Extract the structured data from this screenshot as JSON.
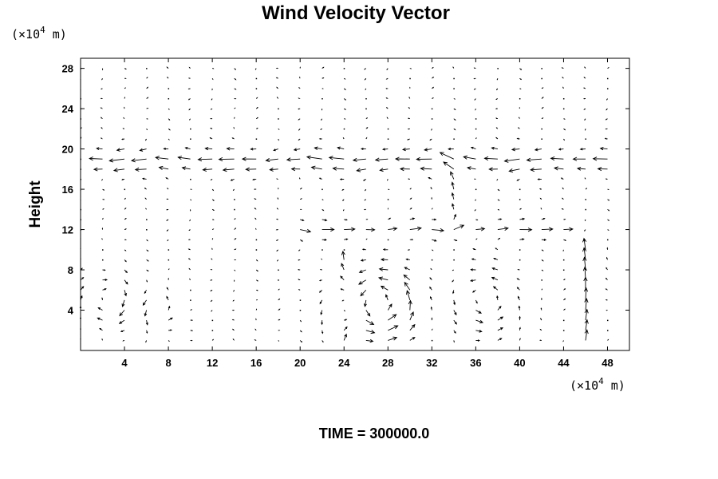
{
  "chart_data": {
    "type": "vector-field",
    "title": "Wind Velocity Vector",
    "xlabel": "",
    "ylabel": "Height",
    "x_unit": {
      "prefix": "(×10",
      "exp": "4",
      "suffix": " m)"
    },
    "y_unit": {
      "prefix": "(×10",
      "exp": "4",
      "suffix": " m)"
    },
    "xlim": [
      0,
      50
    ],
    "ylim": [
      0,
      29
    ],
    "x_ticks": [
      4,
      8,
      12,
      16,
      20,
      24,
      28,
      32,
      36,
      40,
      44,
      48
    ],
    "y_ticks": [
      4,
      8,
      12,
      16,
      20,
      24,
      28
    ],
    "x_tick_labels": [
      "4",
      "8",
      "12",
      "16",
      "20",
      "24",
      "28",
      "32",
      "36",
      "40",
      "44",
      "48"
    ],
    "y_tick_labels": [
      "4",
      "8",
      "12",
      "16",
      "20",
      "24",
      "28"
    ],
    "grid": false,
    "vector_grid": {
      "x_start": 0,
      "x_step": 2,
      "x_count": 25,
      "y_start": 1,
      "y_step": 1,
      "y_count": 28
    },
    "features": [
      {
        "kind": "jet",
        "y": 18.8,
        "x_from": 0,
        "x_to": 50,
        "strength": -1.6,
        "width": 1.3
      },
      {
        "kind": "jet",
        "y": 12.0,
        "x_from": 20,
        "x_to": 44,
        "strength": 1.2,
        "width": 0.9
      },
      {
        "kind": "vortex",
        "x": 27,
        "y": 4.5,
        "radius": 3.6,
        "strength": 2.4
      },
      {
        "kind": "vortex",
        "x": 2.5,
        "y": 5.0,
        "radius": 2.6,
        "strength": -1.6
      },
      {
        "kind": "vortex",
        "x": 36.5,
        "y": 5.0,
        "radius": 3.0,
        "strength": 1.5
      },
      {
        "kind": "vortex",
        "x": 7.0,
        "y": 4.0,
        "radius": 2.0,
        "strength": 1.2
      },
      {
        "kind": "updraft",
        "x": 46.5,
        "y_from": 1,
        "y_to": 9,
        "strength": 1.8
      },
      {
        "kind": "updraft",
        "x": 23.5,
        "y_from": 1,
        "y_to": 8,
        "strength": 1.4
      },
      {
        "kind": "updraft",
        "x": 33.5,
        "y_from": 13,
        "y_to": 18,
        "strength": 1.0
      }
    ],
    "time_label": "TIME = 300000.0"
  }
}
